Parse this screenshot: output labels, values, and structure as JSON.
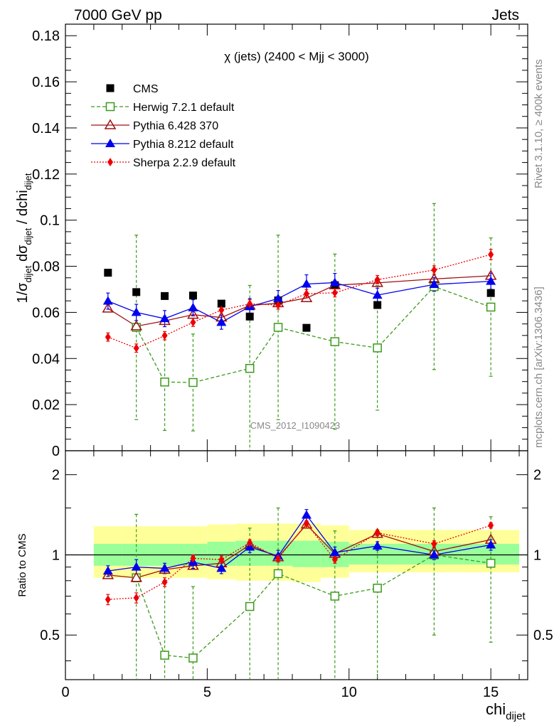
{
  "header": {
    "left": "7000 GeV pp",
    "right": "Jets"
  },
  "side": {
    "rivet": "Rivet 3.1.10, ≥ 400k events",
    "mcplots": "mcplots.cern.ch [arXiv:1306.3436]"
  },
  "watermark": "CMS_2012_I1090423",
  "colors": {
    "cms": "#000000",
    "herwig": "#3a9a1a",
    "pythia6": "#a01010",
    "pythia8": "#0000ee",
    "sherpa": "#ee0000",
    "band_inner": "#99ff99",
    "band_outer": "#ffff99"
  },
  "chart_data": {
    "type": "scatter",
    "title": "χ (jets) (2400 < Mjj < 3000)",
    "xlabel": "chi_dijet",
    "ylabel": "1/σ_dijet dσ_dijet / dchi_dijet",
    "ratio_ylabel": "Ratio to CMS",
    "xlim": [
      0,
      16.3
    ],
    "ylim": [
      0,
      0.185
    ],
    "ratio_ylim": [
      0.34,
      2.46
    ],
    "x_ticks": [
      0,
      5,
      10,
      15
    ],
    "y_ticks": [
      0,
      0.02,
      0.04,
      0.06,
      0.08,
      0.1,
      0.12,
      0.14,
      0.16,
      0.18
    ],
    "ratio_ticks": [
      0.5,
      1,
      2
    ],
    "x": [
      1.5,
      2.5,
      3.5,
      4.5,
      5.5,
      6.5,
      7.5,
      8.5,
      9.5,
      11,
      13,
      15
    ],
    "bins": [
      [
        1,
        2
      ],
      [
        2,
        3
      ],
      [
        3,
        4
      ],
      [
        4,
        5
      ],
      [
        5,
        6
      ],
      [
        6,
        7
      ],
      [
        7,
        8
      ],
      [
        8,
        9
      ],
      [
        9,
        10
      ],
      [
        10,
        12
      ],
      [
        12,
        14
      ],
      [
        14,
        16
      ]
    ],
    "band_inner": [
      [
        0.91,
        1.1
      ],
      [
        0.91,
        1.1
      ],
      [
        0.91,
        1.1
      ],
      [
        0.91,
        1.1
      ],
      [
        0.91,
        1.12
      ],
      [
        0.91,
        1.13
      ],
      [
        0.91,
        1.13
      ],
      [
        0.9,
        1.13
      ],
      [
        0.9,
        1.12
      ],
      [
        0.92,
        1.1
      ],
      [
        0.92,
        1.1
      ],
      [
        0.92,
        1.1
      ]
    ],
    "band_outer": [
      [
        0.82,
        1.28
      ],
      [
        0.82,
        1.28
      ],
      [
        0.82,
        1.28
      ],
      [
        0.82,
        1.28
      ],
      [
        0.81,
        1.3
      ],
      [
        0.8,
        1.31
      ],
      [
        0.8,
        1.31
      ],
      [
        0.79,
        1.31
      ],
      [
        0.82,
        1.29
      ],
      [
        0.86,
        1.24
      ],
      [
        0.86,
        1.24
      ],
      [
        0.86,
        1.24
      ]
    ],
    "series": [
      {
        "name": "CMS",
        "marker": "square-filled",
        "values": [
          0.0772,
          0.0688,
          0.0671,
          0.0673,
          0.0638,
          0.0582,
          0.0652,
          0.0533,
          0.0718,
          0.0632,
          0.0718,
          0.0684
        ],
        "ratio": [
          1,
          1,
          1,
          1,
          1,
          1,
          1,
          1,
          1,
          1,
          1,
          1
        ]
      },
      {
        "name": "Herwig 7.2.1 default",
        "marker": "square-open",
        "line": "dashed",
        "values": [
          null,
          0.0535,
          0.0298,
          0.0296,
          null,
          0.0357,
          0.0535,
          null,
          0.0473,
          0.0446,
          0.0712,
          0.0623
        ],
        "err": [
          null,
          0.04,
          0.021,
          0.021,
          null,
          0.036,
          0.04,
          null,
          0.038,
          0.027,
          0.036,
          0.03
        ],
        "ratio": [
          null,
          0.82,
          0.42,
          0.41,
          null,
          0.64,
          0.85,
          null,
          0.7,
          0.75,
          1,
          0.93
        ],
        "ratio_err": [
          null,
          0.6,
          0.38,
          0.35,
          null,
          0.62,
          0.65,
          null,
          0.53,
          0.43,
          0.5,
          0.46
        ]
      },
      {
        "name": "Pythia 6.428 370",
        "marker": "triangle-open",
        "line": "solid",
        "values": [
          0.0617,
          0.054,
          0.0563,
          0.059,
          0.0578,
          0.063,
          0.064,
          0.0662,
          0.0718,
          0.0728,
          0.0745,
          0.0759
        ],
        "ratio": [
          0.84,
          0.82,
          0.88,
          0.91,
          0.93,
          1.09,
          0.98,
          1.3,
          1.01,
          1.2,
          1.03,
          1.14
        ]
      },
      {
        "name": "Pythia 8.212 default",
        "marker": "triangle-filled",
        "line": "solid",
        "values": [
          0.0649,
          0.06,
          0.0573,
          0.062,
          0.0557,
          0.0625,
          0.066,
          0.0723,
          0.0729,
          0.0675,
          0.0721,
          0.0735
        ],
        "err": [
          0.0035,
          0.0035,
          0.0035,
          0.0035,
          0.003,
          0.0035,
          0.0035,
          0.004,
          0.004,
          0.003,
          0.003,
          0.0035
        ],
        "ratio": [
          0.87,
          0.9,
          0.89,
          0.94,
          0.89,
          1.07,
          0.99,
          1.41,
          1.02,
          1.08,
          1.0,
          1.09
        ],
        "ratio_err": [
          0.04,
          0.06,
          0.04,
          0.05,
          0.04,
          0.05,
          0.05,
          0.07,
          0.05,
          0.04,
          0.04,
          0.05
        ]
      },
      {
        "name": "Sherpa 2.2.9 default",
        "marker": "diamond-filled",
        "line": "dotted",
        "values": [
          0.0493,
          0.0445,
          0.0499,
          0.0557,
          0.061,
          0.0637,
          0.0632,
          0.0681,
          0.0685,
          0.0742,
          0.0784,
          0.0851
        ],
        "err": [
          0.0018,
          0.0018,
          0.0018,
          0.0018,
          0.0018,
          0.0018,
          0.0018,
          0.0018,
          0.0018,
          0.0018,
          0.0018,
          0.0022
        ],
        "ratio": [
          0.68,
          0.69,
          0.79,
          0.97,
          0.96,
          1.11,
          0.97,
          1.31,
          0.96,
          1.21,
          1.1,
          1.29
        ],
        "ratio_err": [
          0.03,
          0.03,
          0.03,
          0.03,
          0.03,
          0.03,
          0.03,
          0.03,
          0.03,
          0.03,
          0.03,
          0.03
        ]
      }
    ]
  }
}
